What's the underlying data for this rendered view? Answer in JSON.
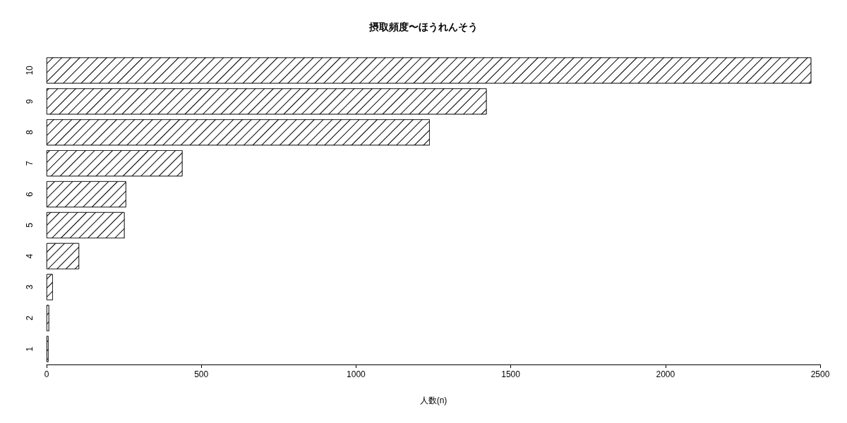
{
  "chart_data": {
    "type": "bar",
    "orientation": "horizontal",
    "title": "摂取頻度〜ほうれんそう",
    "xlabel": "人数(n)",
    "categories": [
      "10",
      "9",
      "8",
      "7",
      "6",
      "5",
      "4",
      "3",
      "2",
      "1"
    ],
    "values": [
      2471,
      1422,
      1238,
      439,
      257,
      252,
      105,
      20,
      8,
      6
    ],
    "color": "#ffffff",
    "xlim": [
      0,
      2500
    ],
    "xticks": [
      0,
      500,
      1000,
      1500,
      2000,
      2500
    ],
    "grid": false
  }
}
